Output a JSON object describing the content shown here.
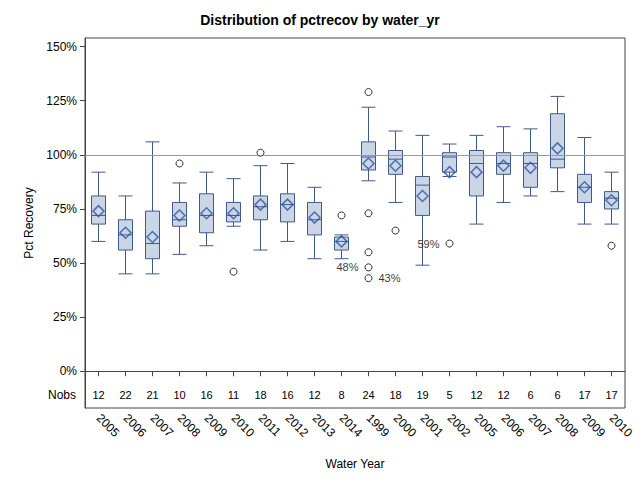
{
  "chart_data": {
    "type": "boxplot",
    "title": "Distribution of pctrecov by water_yr",
    "x_label": "Water Year",
    "y_label": "Pct Recovery",
    "categories": [
      "2005",
      "2006",
      "2007",
      "2008",
      "2009",
      "2010",
      "2011",
      "2012",
      "2013",
      "2014",
      "1999",
      "2000",
      "2001",
      "2002",
      "2005",
      "2006",
      "2007",
      "2008",
      "2009",
      "2010"
    ],
    "whisker_low": [
      60,
      45,
      45,
      54,
      58,
      67,
      56,
      60,
      52,
      52,
      88,
      78,
      49,
      90,
      68,
      78,
      81,
      83,
      68,
      68
    ],
    "q1": [
      68,
      56,
      52,
      67,
      64,
      69,
      70,
      69,
      63,
      56,
      93,
      91,
      72,
      92,
      81,
      91,
      85,
      94,
      78,
      75
    ],
    "median": [
      72,
      63,
      59,
      70,
      72,
      72,
      76,
      77,
      70,
      60,
      99,
      98,
      86,
      99,
      96,
      96,
      96,
      98,
      85,
      80
    ],
    "q3": [
      81,
      70,
      74,
      78,
      82,
      78,
      81,
      82,
      78,
      62,
      106,
      102,
      90,
      101,
      102,
      101,
      101,
      119,
      91,
      83
    ],
    "whisker_high": [
      92,
      81,
      106,
      87,
      92,
      89,
      95,
      96,
      85,
      63,
      122,
      111,
      109,
      105,
      109,
      113,
      112,
      127,
      108,
      92
    ],
    "means": [
      74,
      64,
      62,
      72,
      73,
      73,
      77,
      77,
      71,
      60,
      96,
      95,
      81,
      92,
      92,
      95,
      94,
      103,
      85,
      79
    ],
    "outliers": [
      [],
      [],
      [],
      [
        96
      ],
      [],
      [
        46
      ],
      [
        101
      ],
      [],
      [],
      [
        72
      ],
      [
        129,
        73,
        55,
        48,
        43
      ],
      [
        65
      ],
      [],
      [
        59
      ],
      [],
      [],
      [],
      [],
      [],
      [
        58
      ]
    ],
    "annotations": [
      {
        "category": "1999",
        "value": 48,
        "text": "48%",
        "position": "left"
      },
      {
        "category": "1999",
        "value": 43,
        "text": "43%",
        "position": "right"
      },
      {
        "category": "2002",
        "value": 59,
        "text": "59%",
        "position": "left"
      }
    ],
    "nobs_label": "Nobs",
    "nobs": [
      12,
      22,
      21,
      10,
      16,
      11,
      18,
      16,
      12,
      8,
      24,
      18,
      19,
      5,
      12,
      12,
      6,
      6,
      17,
      17
    ],
    "reference_line": 100,
    "ylim": [
      -17,
      154
    ],
    "yticks": [
      {
        "value": 0,
        "label": "0%"
      },
      {
        "value": 25,
        "label": "25%"
      },
      {
        "value": 50,
        "label": "50%"
      },
      {
        "value": 75,
        "label": "75%"
      },
      {
        "value": 100,
        "label": "100%"
      },
      {
        "value": 125,
        "label": "125%"
      },
      {
        "value": 150,
        "label": "150%"
      }
    ],
    "color": "#cad5e6",
    "grid": false
  }
}
